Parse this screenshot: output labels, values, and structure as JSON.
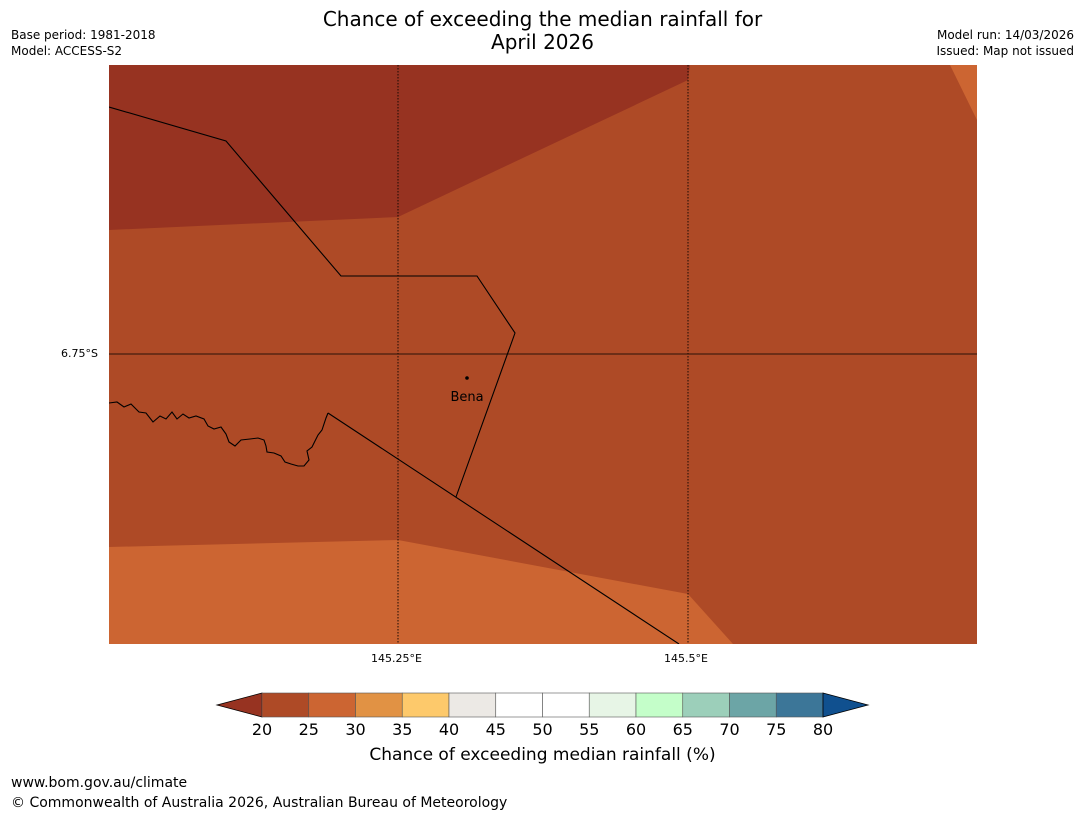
{
  "title": {
    "line1": "Chance of exceeding the median rainfall for",
    "line2": "April 2026"
  },
  "meta": {
    "base_period": "Base period: 1981-2018",
    "model": "Model: ACCESS-S2",
    "model_run": "Model run: 14/03/2026",
    "issued": "Issued: Map not issued"
  },
  "map": {
    "lat_label": "6.75°S",
    "lon_labels": [
      "145.25°E",
      "145.5°E"
    ],
    "place_name": "Bena"
  },
  "colorbar": {
    "ticks": [
      "20",
      "25",
      "30",
      "35",
      "40",
      "45",
      "50",
      "55",
      "60",
      "65",
      "70",
      "75",
      "80"
    ],
    "colors": [
      "#973321",
      "#ae4a26",
      "#cc6532",
      "#e19244",
      "#fdc96b",
      "#ece9e5",
      "#ffffff",
      "#ffffff",
      "#e7f5e6",
      "#c4fec9",
      "#9ccfba",
      "#6ca5a6",
      "#3c7698",
      "#10508f"
    ],
    "label": "Chance of exceeding median rainfall (%)"
  },
  "footer": {
    "url": "www.bom.gov.au/climate",
    "copyright": "© Commonwealth of Australia 2026, Australian Bureau of Meteorology"
  }
}
